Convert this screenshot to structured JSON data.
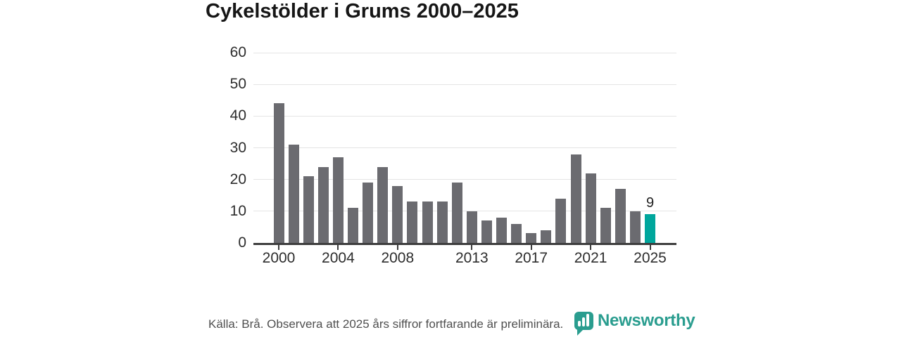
{
  "header": {
    "title": "Cykelstölder i Grums 2000–2025"
  },
  "chart_data": {
    "type": "bar",
    "title": "Cykelstölder i Grums 2000–2025",
    "categories": [
      2000,
      2001,
      2002,
      2003,
      2004,
      2005,
      2006,
      2007,
      2008,
      2009,
      2010,
      2011,
      2012,
      2013,
      2014,
      2015,
      2016,
      2017,
      2018,
      2019,
      2020,
      2021,
      2022,
      2023,
      2024,
      2025
    ],
    "values": [
      44,
      31,
      21,
      24,
      27,
      11,
      19,
      24,
      18,
      13,
      13,
      13,
      19,
      10,
      7,
      8,
      6,
      3,
      4,
      14,
      28,
      22,
      11,
      17,
      10,
      9
    ],
    "xlabel": "",
    "ylabel": "",
    "ylim": [
      0,
      60
    ],
    "yticks": [
      0,
      10,
      20,
      30,
      40,
      50,
      60
    ],
    "xtick_years": [
      2000,
      2004,
      2008,
      2013,
      2017,
      2021,
      2025
    ],
    "grid": true,
    "legend": "none",
    "bar_color": "#6b6b70",
    "highlight_year": 2025,
    "highlight_color": "#00a69c",
    "annotations": [
      {
        "year": 2025,
        "text": "9"
      }
    ]
  },
  "footer": {
    "source_note": "Källa: Brå. Observera att 2025 års siffror fortfarande är preliminära."
  },
  "branding": {
    "logo_text": "Newsworthy",
    "logo_color": "#2a9d8f"
  }
}
